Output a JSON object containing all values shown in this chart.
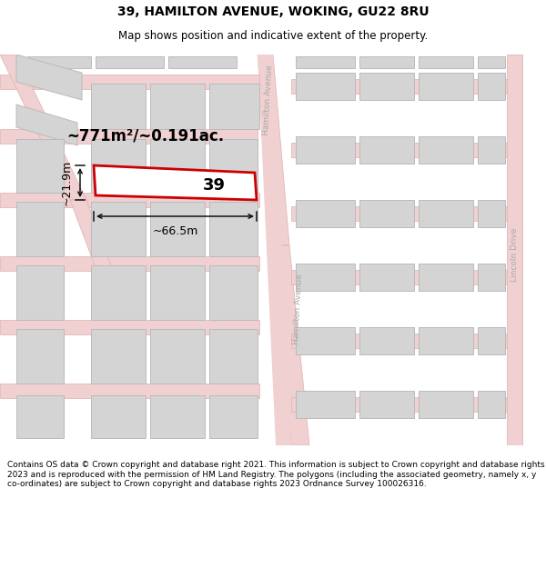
{
  "title": "39, HAMILTON AVENUE, WOKING, GU22 8RU",
  "subtitle": "Map shows position and indicative extent of the property.",
  "footer": "Contains OS data © Crown copyright and database right 2021. This information is subject to Crown copyright and database rights 2023 and is reproduced with the permission of HM Land Registry. The polygons (including the associated geometry, namely x, y co-ordinates) are subject to Crown copyright and database rights 2023 Ordnance Survey 100026316.",
  "area_label": "~771m²/~0.191ac.",
  "width_label": "~66.5m",
  "height_label": "~21.9m",
  "property_number": "39",
  "map_bg": "#f8f8f8",
  "road_fill": "#f0d0d0",
  "road_edge": "#e0b0b0",
  "property_fill": "#ffffff",
  "property_edge": "#cc0000",
  "building_fill": "#d4d4d4",
  "building_edge": "#bbbbbb",
  "dim_color": "#111111",
  "street_label_color": "#aaaaaa",
  "title_fontsize": 10,
  "subtitle_fontsize": 8.5,
  "footer_fontsize": 6.5
}
